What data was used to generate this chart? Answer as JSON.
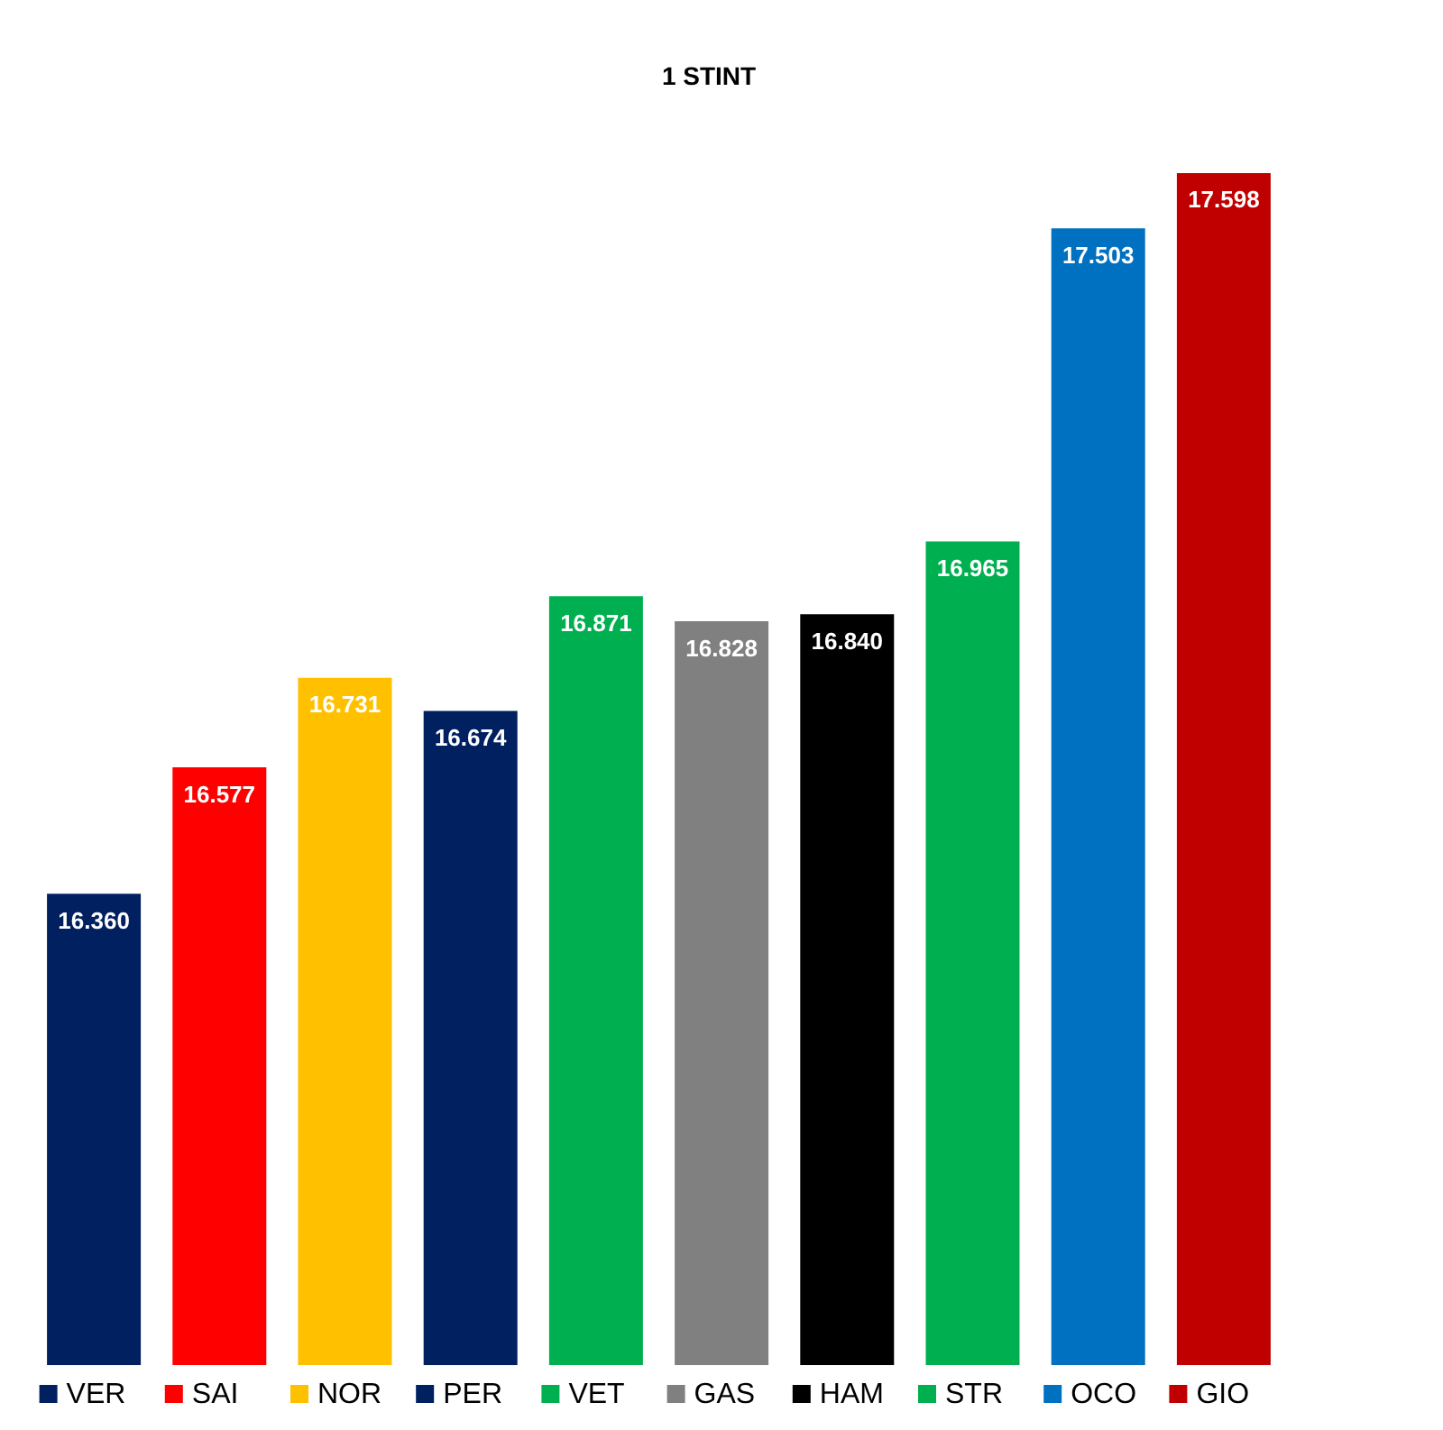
{
  "chart_data": {
    "type": "bar",
    "title": "1 STINT",
    "categories": [
      "VER",
      "SAI",
      "NOR",
      "PER",
      "VET",
      "GAS",
      "HAM",
      "STR",
      "OCO",
      "GIO"
    ],
    "values": [
      16.36,
      16.577,
      16.731,
      16.674,
      16.871,
      16.828,
      16.84,
      16.965,
      17.503,
      17.598
    ],
    "value_labels": [
      "16.360",
      "16.577",
      "16.731",
      "16.674",
      "16.871",
      "16.828",
      "16.840",
      "16.965",
      "17.503",
      "17.598"
    ],
    "colors": [
      "#002060",
      "#ff0000",
      "#ffc000",
      "#002060",
      "#00b050",
      "#808080",
      "#000000",
      "#00b050",
      "#0070c0",
      "#c00000"
    ],
    "ylim": [
      15.55,
      17.598
    ],
    "tick_labels": "x",
    "grid": false
  }
}
